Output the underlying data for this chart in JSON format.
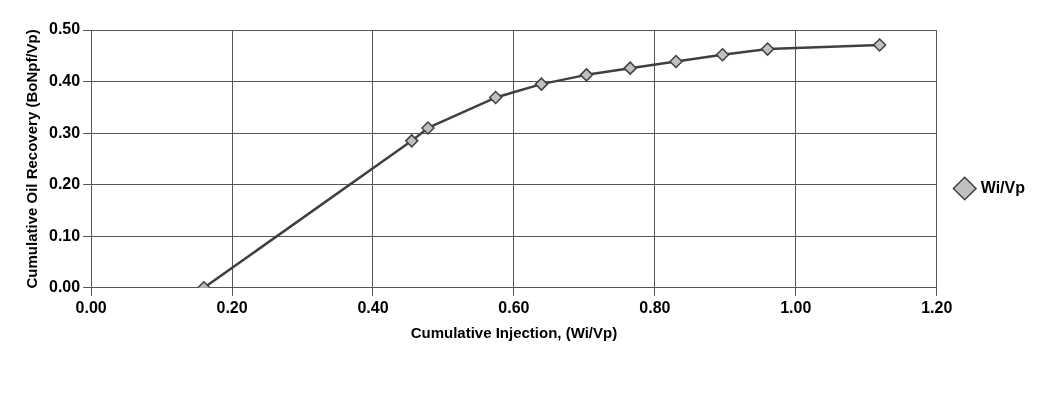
{
  "chart_data": {
    "type": "line",
    "xlabel": "Cumulative Injection, (Wi/Vp)",
    "ylabel": "Cumulative Oil Recovery (BoNpf/Vp)",
    "x": [
      0.16,
      0.455,
      0.478,
      0.574,
      0.639,
      0.703,
      0.765,
      0.83,
      0.896,
      0.96,
      1.119
    ],
    "series": [
      {
        "name": "Wi/Vp",
        "color": "#404040",
        "values": [
          0,
          0.285,
          0.31,
          0.369,
          0.395,
          0.413,
          0.426,
          0.439,
          0.452,
          0.463,
          0.471
        ]
      }
    ],
    "xlim": [
      0,
      1.2
    ],
    "xticks": [
      {
        "value": 0,
        "label": "0.00"
      },
      {
        "value": 0.2,
        "label": "0.20"
      },
      {
        "value": 0.4,
        "label": "0.40"
      },
      {
        "value": 0.6,
        "label": "0.60"
      },
      {
        "value": 0.8,
        "label": "0.80"
      },
      {
        "value": 1,
        "label": "1.00"
      },
      {
        "value": 1.2,
        "label": "1.20"
      }
    ],
    "ylim": [
      0,
      0.5
    ],
    "yticks": [
      {
        "value": 0,
        "label": "0.00"
      },
      {
        "value": 0.1,
        "label": "0.10"
      },
      {
        "value": 0.2,
        "label": "0.20"
      },
      {
        "value": 0.3,
        "label": "0.30"
      },
      {
        "value": 0.4,
        "label": "0.40"
      },
      {
        "value": 0.5,
        "label": "0.50"
      }
    ],
    "grid": true,
    "legend": "right",
    "marker": "diamond",
    "line_style": "solid"
  }
}
